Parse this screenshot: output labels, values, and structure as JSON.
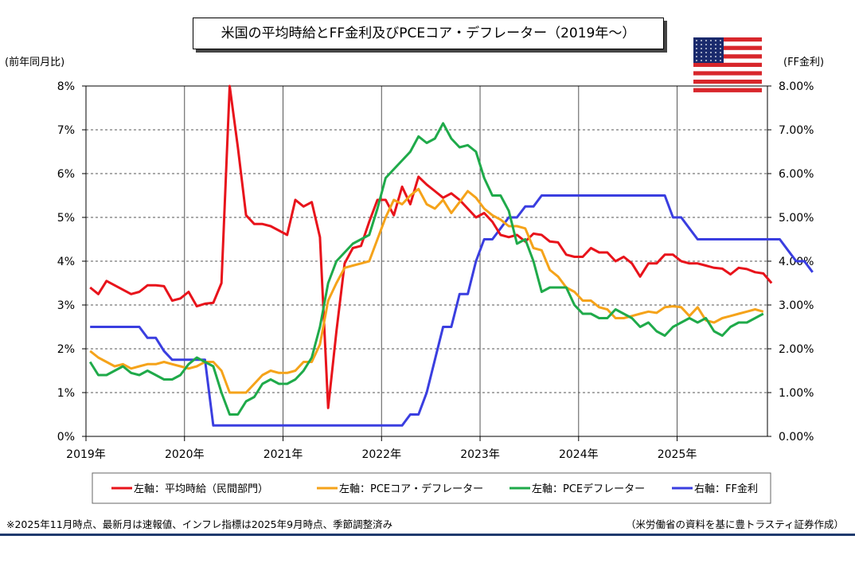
{
  "chart_data": {
    "type": "line",
    "title": "米国の平均時給とFF金利及びPCEコア・デフレーター（2019年～）",
    "ylabel_left": "(前年同月比)",
    "ylabel_right": "(FF金利)",
    "ylim_left": [
      0,
      8
    ],
    "ylim_right": [
      0,
      8
    ],
    "yticks_left": [
      "0%",
      "1%",
      "2%",
      "3%",
      "4%",
      "5%",
      "6%",
      "7%",
      "8%"
    ],
    "yticks_right": [
      "0.00%",
      "1.00%",
      "2.00%",
      "3.00%",
      "4.00%",
      "5.00%",
      "6.00%",
      "7.00%",
      "8.00%"
    ],
    "xticks": [
      "2019年",
      "2020年",
      "2021年",
      "2022年",
      "2023年",
      "2024年",
      "2025年"
    ],
    "x_start": "2019-01",
    "x_end": "2025-11",
    "grid": "vertical at year boundaries, dashed horizontal",
    "legend_position": "bottom",
    "series": [
      {
        "name": "左軸：平均時給（民間部門）",
        "color": "#e8131b",
        "axis": "left",
        "values": [
          3.4,
          3.25,
          3.55,
          3.45,
          3.35,
          3.25,
          3.3,
          3.45,
          3.45,
          3.43,
          3.1,
          3.15,
          3.3,
          2.97,
          3.03,
          3.05,
          3.5,
          8.0,
          6.6,
          5.05,
          4.85,
          4.85,
          4.8,
          4.7,
          4.6,
          5.4,
          5.25,
          5.35,
          4.55,
          0.65,
          2.4,
          3.95,
          4.3,
          4.35,
          4.9,
          5.4,
          5.4,
          5.05,
          5.7,
          5.3,
          5.93,
          5.75,
          5.6,
          5.45,
          5.55,
          5.4,
          5.2,
          5.0,
          5.1,
          4.9,
          4.6,
          4.55,
          4.6,
          4.45,
          4.63,
          4.6,
          4.45,
          4.43,
          4.15,
          4.1,
          4.1,
          4.3,
          4.2,
          4.2,
          4.0,
          4.1,
          3.95,
          3.65,
          3.95,
          3.95,
          4.15,
          4.15,
          4.0,
          3.95,
          3.95,
          3.9,
          3.85,
          3.83,
          3.7,
          3.85,
          3.82,
          3.75,
          3.72,
          3.5
        ]
      },
      {
        "name": "左軸：PCEコア・デフレーター",
        "color": "#f5a31a",
        "axis": "left",
        "values": [
          1.95,
          1.8,
          1.7,
          1.6,
          1.65,
          1.55,
          1.6,
          1.65,
          1.65,
          1.7,
          1.65,
          1.6,
          1.55,
          1.6,
          1.7,
          1.7,
          1.5,
          1.0,
          1.0,
          1.0,
          1.2,
          1.4,
          1.5,
          1.45,
          1.45,
          1.5,
          1.7,
          1.7,
          2.1,
          3.1,
          3.5,
          3.85,
          3.9,
          3.95,
          4.0,
          4.5,
          5.0,
          5.4,
          5.3,
          5.5,
          5.65,
          5.3,
          5.2,
          5.4,
          5.1,
          5.35,
          5.6,
          5.45,
          5.2,
          5.05,
          4.95,
          4.8,
          4.8,
          4.75,
          4.3,
          4.25,
          3.8,
          3.65,
          3.4,
          3.3,
          3.1,
          3.1,
          2.95,
          2.9,
          2.7,
          2.7,
          2.75,
          2.8,
          2.85,
          2.82,
          2.95,
          2.97,
          2.95,
          2.75,
          2.95,
          2.65,
          2.6,
          2.7,
          2.75,
          2.8,
          2.85,
          2.9,
          2.85
        ]
      },
      {
        "name": "左軸：PCEデフレーター",
        "color": "#1faa4a",
        "axis": "left",
        "values": [
          1.7,
          1.4,
          1.4,
          1.5,
          1.6,
          1.45,
          1.4,
          1.5,
          1.4,
          1.3,
          1.3,
          1.4,
          1.65,
          1.8,
          1.7,
          1.6,
          1.0,
          0.5,
          0.5,
          0.8,
          0.9,
          1.2,
          1.3,
          1.2,
          1.2,
          1.3,
          1.5,
          1.8,
          2.5,
          3.5,
          4.0,
          4.2,
          4.4,
          4.5,
          4.6,
          5.2,
          5.9,
          6.1,
          6.3,
          6.5,
          6.85,
          6.7,
          6.8,
          7.15,
          6.8,
          6.6,
          6.65,
          6.5,
          5.9,
          5.5,
          5.5,
          5.15,
          4.4,
          4.5,
          4.0,
          3.3,
          3.4,
          3.4,
          3.4,
          3.0,
          2.8,
          2.8,
          2.7,
          2.7,
          2.9,
          2.8,
          2.7,
          2.5,
          2.6,
          2.4,
          2.3,
          2.5,
          2.6,
          2.7,
          2.6,
          2.7,
          2.4,
          2.3,
          2.5,
          2.6,
          2.6,
          2.7,
          2.8
        ]
      },
      {
        "name": "右軸：FF金利",
        "color": "#3a3ee0",
        "axis": "right",
        "values": [
          2.5,
          2.5,
          2.5,
          2.5,
          2.5,
          2.5,
          2.5,
          2.25,
          2.25,
          1.95,
          1.75,
          1.75,
          1.75,
          1.75,
          1.75,
          0.25,
          0.25,
          0.25,
          0.25,
          0.25,
          0.25,
          0.25,
          0.25,
          0.25,
          0.25,
          0.25,
          0.25,
          0.25,
          0.25,
          0.25,
          0.25,
          0.25,
          0.25,
          0.25,
          0.25,
          0.25,
          0.25,
          0.25,
          0.25,
          0.5,
          0.5,
          1.0,
          1.75,
          2.5,
          2.5,
          3.25,
          3.25,
          4.0,
          4.5,
          4.5,
          4.75,
          5.0,
          5.0,
          5.25,
          5.25,
          5.5,
          5.5,
          5.5,
          5.5,
          5.5,
          5.5,
          5.5,
          5.5,
          5.5,
          5.5,
          5.5,
          5.5,
          5.5,
          5.5,
          5.5,
          5.5,
          5.0,
          5.0,
          4.75,
          4.5,
          4.5,
          4.5,
          4.5,
          4.5,
          4.5,
          4.5,
          4.5,
          4.5,
          4.5,
          4.5,
          4.25,
          4.0,
          4.0,
          3.75
        ]
      }
    ]
  },
  "footnote": "※2025年11月時点、最新月は速報値、インフレ指標は2025年9月時点、季節調整済み",
  "source": "（米労働省の資料を基に豊トラスティ証券作成）",
  "flag": "us-flag"
}
